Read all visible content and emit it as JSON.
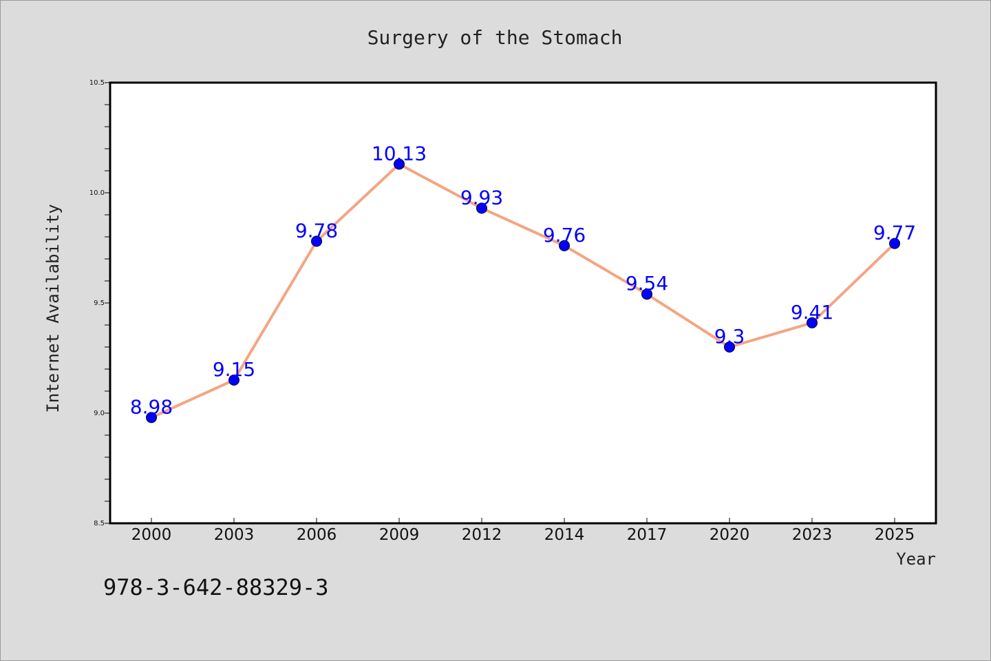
{
  "chart_data": {
    "type": "line",
    "title": "Surgery of the Stomach",
    "xlabel": "Year",
    "ylabel": "Internet Availability",
    "categories": [
      "2000",
      "2003",
      "2006",
      "2009",
      "2012",
      "2014",
      "2017",
      "2020",
      "2023",
      "2025"
    ],
    "series": [
      {
        "values": [
          8.98,
          9.15,
          9.78,
          10.13,
          9.93,
          9.76,
          9.54,
          9.3,
          9.41,
          9.77
        ],
        "labels": [
          "8.98",
          "9.15",
          "9.78",
          "10.13",
          "9.93",
          "9.76",
          "9.54",
          "9.3",
          "9.41",
          "9.77"
        ],
        "line_color": "#f4a582",
        "marker_color": "#0000ff"
      }
    ],
    "ylim": [
      8.5,
      10.5
    ],
    "y_ticks": [
      "8.5",
      "9.0",
      "9.5",
      "10.0",
      "10.5"
    ],
    "grid": false,
    "legend": "none"
  },
  "footer_text": "978-3-642-88329-3",
  "colors": {
    "background": "#dcdcdc",
    "plot_background": "#ffffff",
    "line": "#f4a582",
    "marker": "#0000ff",
    "data_label": "#0000ff"
  }
}
